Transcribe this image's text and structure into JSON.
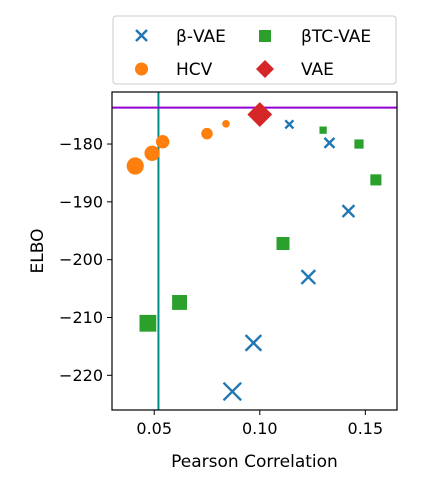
{
  "chart_data": {
    "type": "scatter",
    "xlabel": "Pearson Correlation",
    "ylabel": "ELBO",
    "xlim": [
      0.03,
      0.165
    ],
    "ylim": [
      -226,
      -171
    ],
    "xticks": [
      0.05,
      0.1,
      0.15
    ],
    "xtick_labels": [
      "0.05",
      "0.10",
      "0.15"
    ],
    "yticks": [
      -180,
      -190,
      -200,
      -210,
      -220
    ],
    "ytick_labels": [
      "−180",
      "−190",
      "−200",
      "−210",
      "−220"
    ],
    "grid": false,
    "legend_position": "top",
    "reference_lines": [
      {
        "orientation": "vertical",
        "x": 0.052,
        "color": "#008b8b"
      },
      {
        "orientation": "horizontal",
        "y": -173.7,
        "color": "#9400d3"
      }
    ],
    "series": [
      {
        "name": "β-VAE",
        "marker": "x",
        "color": "#1f77b4",
        "points": [
          {
            "x": 0.114,
            "y": -176.6,
            "size": 3
          },
          {
            "x": 0.133,
            "y": -179.8,
            "size": 4
          },
          {
            "x": 0.142,
            "y": -191.6,
            "size": 5
          },
          {
            "x": 0.123,
            "y": -203.0,
            "size": 6
          },
          {
            "x": 0.097,
            "y": -214.4,
            "size": 7
          },
          {
            "x": 0.087,
            "y": -222.8,
            "size": 8
          }
        ]
      },
      {
        "name": "HCV",
        "marker": "circle",
        "color": "#ff7f0e",
        "points": [
          {
            "x": 0.084,
            "y": -176.5,
            "size": 3
          },
          {
            "x": 0.075,
            "y": -178.2,
            "size": 5
          },
          {
            "x": 0.054,
            "y": -179.6,
            "size": 6
          },
          {
            "x": 0.049,
            "y": -181.6,
            "size": 7
          },
          {
            "x": 0.041,
            "y": -183.8,
            "size": 8
          }
        ]
      },
      {
        "name": "βTC-VAE",
        "marker": "square",
        "color": "#2ca02c",
        "points": [
          {
            "x": 0.13,
            "y": -177.6,
            "size": 3
          },
          {
            "x": 0.147,
            "y": -180.0,
            "size": 4
          },
          {
            "x": 0.155,
            "y": -186.2,
            "size": 5
          },
          {
            "x": 0.111,
            "y": -197.2,
            "size": 6
          },
          {
            "x": 0.062,
            "y": -207.4,
            "size": 7
          },
          {
            "x": 0.047,
            "y": -211.0,
            "size": 8
          }
        ]
      },
      {
        "name": "VAE",
        "marker": "diamond",
        "color": "#d62728",
        "points": [
          {
            "x": 0.1,
            "y": -174.9,
            "size": 8
          }
        ]
      }
    ]
  }
}
